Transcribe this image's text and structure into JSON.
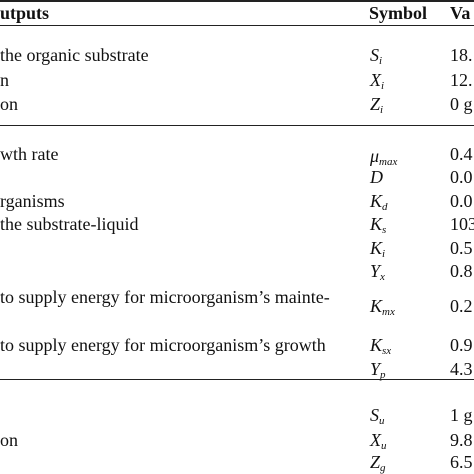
{
  "header": {
    "description": "utputs",
    "symbol": "Symbol",
    "value": "Va"
  },
  "rows": [
    {
      "desc": "the organic substrate",
      "sym": "S",
      "sub": "i",
      "val": "18."
    },
    {
      "desc": "n",
      "sym": "X",
      "sub": "i",
      "val": "12."
    },
    {
      "desc": "on",
      "sym": "Z",
      "sub": "i",
      "val": "0 g"
    },
    {
      "desc": "wth rate",
      "sym": "μ",
      "sub": "max",
      "val": "0.4"
    },
    {
      "desc": "",
      "sym": "D",
      "sub": "",
      "val": "0.0"
    },
    {
      "desc": "rganisms",
      "sym": "K",
      "sub": "d",
      "val": "0.0"
    },
    {
      "desc": "the substrate-liquid",
      "sym": "K",
      "sub": "s",
      "val": "103"
    },
    {
      "desc": "",
      "sym": "K",
      "sub": "i",
      "val": "0.5"
    },
    {
      "desc": "",
      "sym": "Y",
      "sub": "x",
      "val": "0.8"
    },
    {
      "desc": "to supply energy for microorganism’s mainte-",
      "sym": "K",
      "sub": "mx",
      "val": "0.2"
    },
    {
      "desc": "",
      "sym": "",
      "sub": "",
      "val": ""
    },
    {
      "desc": "to supply energy for microorganism’s growth",
      "sym": "K",
      "sub": "sx",
      "val": "0.9"
    },
    {
      "desc": "",
      "sym": "Y",
      "sub": "p",
      "val": "4.3"
    },
    {
      "desc": "",
      "sym": "S",
      "sub": "u",
      "val": "1 g"
    },
    {
      "desc": "on",
      "sym": "X",
      "sub": "u",
      "val": "9.8"
    },
    {
      "desc": "",
      "sym": "Z",
      "sub": "g",
      "val": "6.5"
    }
  ]
}
